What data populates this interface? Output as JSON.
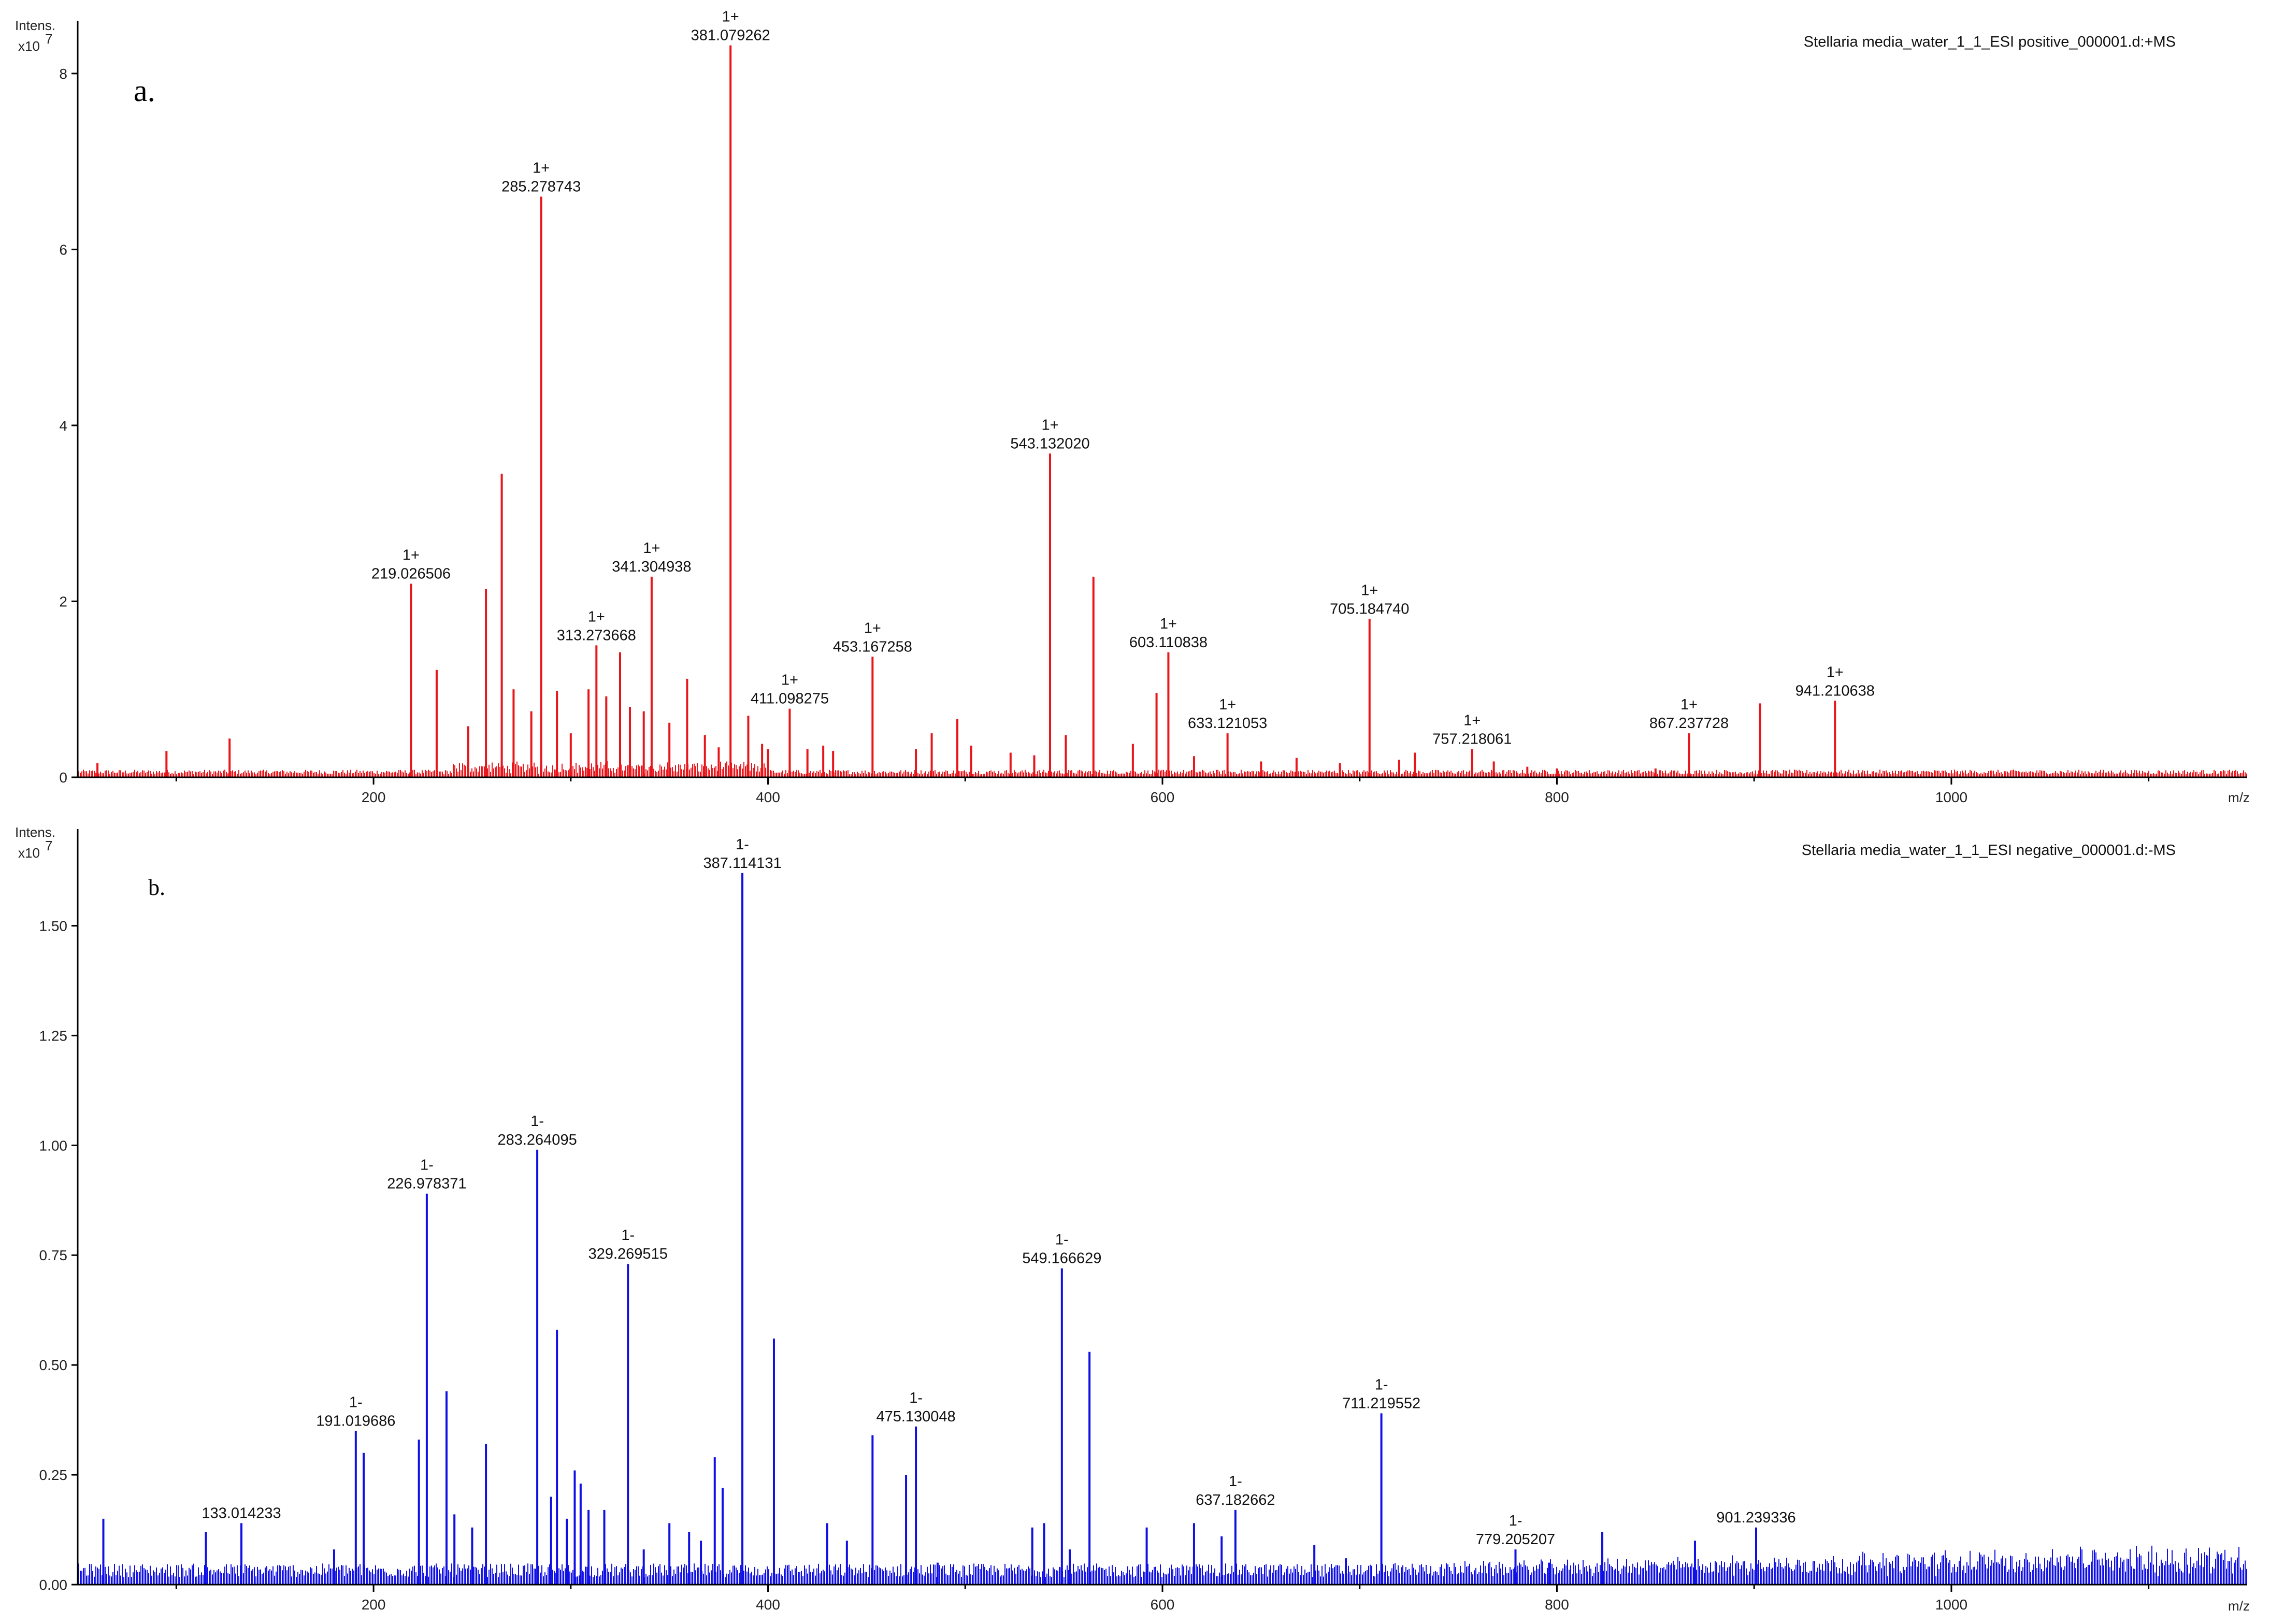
{
  "chart_data": [
    {
      "type": "bar",
      "panel": "a.",
      "title": "Stellaria media_water_1_1_ESI positive_000001.d:+MS",
      "ylabel_line1": "Intens.",
      "ylabel_line2": "x10",
      "ylabel_exp": "7",
      "xlabel": "m/z",
      "xlim": [
        50,
        1150
      ],
      "ylim": [
        0,
        8.6
      ],
      "xticks": [
        200,
        400,
        600,
        800,
        1000
      ],
      "xtick_labels": [
        "200",
        "400",
        "600",
        "800",
        "1000"
      ],
      "yticks": [
        0,
        2,
        4,
        6,
        8
      ],
      "ytick_labels": [
        "0",
        "2",
        "4",
        "6",
        "8"
      ],
      "color": "#e8151b",
      "peaks_x": [
        60,
        95,
        127,
        219,
        232,
        248,
        257,
        265,
        271,
        280,
        285,
        293,
        300,
        309,
        313,
        318,
        325,
        330,
        337,
        341,
        350,
        359,
        368,
        375,
        381,
        390,
        397,
        400,
        411,
        420,
        428,
        433,
        453,
        475,
        483,
        496,
        503,
        523,
        535,
        543,
        551,
        565,
        585,
        597,
        603,
        616,
        633,
        650,
        668,
        690,
        705,
        720,
        728,
        757,
        768,
        785,
        800,
        850,
        867,
        903,
        941
      ],
      "peaks_y": [
        0.16,
        0.3,
        0.44,
        2.2,
        1.22,
        0.58,
        2.14,
        3.45,
        1.0,
        0.75,
        6.6,
        0.98,
        0.5,
        1.0,
        1.5,
        0.92,
        1.42,
        0.8,
        0.75,
        2.28,
        0.62,
        1.12,
        0.48,
        0.34,
        8.32,
        0.7,
        0.38,
        0.32,
        0.78,
        0.32,
        0.36,
        0.3,
        1.37,
        0.32,
        0.5,
        0.66,
        0.36,
        0.28,
        0.25,
        3.68,
        0.48,
        2.28,
        0.38,
        0.96,
        1.42,
        0.24,
        0.5,
        0.18,
        0.22,
        0.16,
        1.8,
        0.2,
        0.28,
        0.32,
        0.18,
        0.12,
        0.1,
        0.1,
        0.5,
        0.84,
        0.87
      ],
      "annotations": [
        {
          "x": 219,
          "y": 2.2,
          "charge": "1+",
          "text": "219.026506"
        },
        {
          "x": 285,
          "y": 6.6,
          "charge": "1+",
          "text": "285.278743"
        },
        {
          "x": 313,
          "y": 1.5,
          "charge": "1+",
          "text": "313.273668"
        },
        {
          "x": 341,
          "y": 2.28,
          "charge": "1+",
          "text": "341.304938"
        },
        {
          "x": 381,
          "y": 8.32,
          "charge": "1+",
          "text": "381.079262"
        },
        {
          "x": 411,
          "y": 0.78,
          "charge": "1+",
          "text": "411.098275"
        },
        {
          "x": 453,
          "y": 1.37,
          "charge": "1+",
          "text": "453.167258"
        },
        {
          "x": 543,
          "y": 3.68,
          "charge": "1+",
          "text": "543.132020"
        },
        {
          "x": 603,
          "y": 1.42,
          "charge": "1+",
          "text": "603.110838"
        },
        {
          "x": 633,
          "y": 0.5,
          "charge": "1+",
          "text": "633.121053"
        },
        {
          "x": 705,
          "y": 1.8,
          "charge": "1+",
          "text": "705.184740"
        },
        {
          "x": 757,
          "y": 0.32,
          "charge": "1+",
          "text": "757.218061"
        },
        {
          "x": 867,
          "y": 0.5,
          "charge": "1+",
          "text": "867.237728"
        },
        {
          "x": 941,
          "y": 0.87,
          "charge": "1+",
          "text": "941.210638"
        }
      ]
    },
    {
      "type": "bar",
      "panel": "b.",
      "title": "Stellaria media_water_1_1_ESI negative_000001.d:-MS",
      "ylabel_line1": "Intens.",
      "ylabel_line2": "x10",
      "ylabel_exp": "7",
      "xlabel": "m/z",
      "xlim": [
        50,
        1150
      ],
      "ylim": [
        0,
        1.72
      ],
      "xticks": [
        200,
        400,
        600,
        800,
        1000
      ],
      "xtick_labels": [
        "200",
        "400",
        "600",
        "800",
        "1000"
      ],
      "yticks": [
        0,
        0.25,
        0.5,
        0.75,
        1.0,
        1.25,
        1.5
      ],
      "ytick_labels": [
        "0.00",
        "0.25",
        "0.50",
        "0.75",
        "1.00",
        "1.25",
        "1.50"
      ],
      "color": "#1010e6",
      "peaks_x": [
        63,
        115,
        133,
        180,
        191,
        195,
        223,
        227,
        237,
        241,
        250,
        257,
        283,
        290,
        293,
        298,
        302,
        305,
        309,
        317,
        329,
        337,
        350,
        360,
        366,
        373,
        377,
        387,
        403,
        430,
        440,
        453,
        470,
        475,
        486,
        534,
        540,
        549,
        553,
        563,
        592,
        616,
        630,
        637,
        677,
        693,
        711,
        779,
        796,
        823,
        870,
        901
      ],
      "peaks_y": [
        0.15,
        0.12,
        0.14,
        0.08,
        0.35,
        0.3,
        0.33,
        0.89,
        0.44,
        0.16,
        0.13,
        0.32,
        0.99,
        0.2,
        0.58,
        0.15,
        0.26,
        0.23,
        0.17,
        0.17,
        0.73,
        0.08,
        0.14,
        0.12,
        0.1,
        0.29,
        0.22,
        1.62,
        0.56,
        0.14,
        0.1,
        0.34,
        0.25,
        0.36,
        0.05,
        0.13,
        0.14,
        0.72,
        0.08,
        0.53,
        0.13,
        0.14,
        0.11,
        0.17,
        0.09,
        0.06,
        0.39,
        0.08,
        0.05,
        0.12,
        0.1,
        0.13
      ],
      "annotations": [
        {
          "x": 133,
          "y": 0.14,
          "charge": "",
          "text": "133.014233"
        },
        {
          "x": 191,
          "y": 0.35,
          "charge": "1-",
          "text": "191.019686"
        },
        {
          "x": 227,
          "y": 0.89,
          "charge": "1-",
          "text": "226.978371"
        },
        {
          "x": 283,
          "y": 0.99,
          "charge": "1-",
          "text": "283.264095"
        },
        {
          "x": 329,
          "y": 0.73,
          "charge": "1-",
          "text": "329.269515"
        },
        {
          "x": 387,
          "y": 1.62,
          "charge": "1-",
          "text": "387.114131"
        },
        {
          "x": 475,
          "y": 0.36,
          "charge": "1-",
          "text": "475.130048"
        },
        {
          "x": 549,
          "y": 0.72,
          "charge": "1-",
          "text": "549.166629"
        },
        {
          "x": 637,
          "y": 0.17,
          "charge": "1-",
          "text": "637.182662"
        },
        {
          "x": 711,
          "y": 0.39,
          "charge": "1-",
          "text": "711.219552"
        },
        {
          "x": 779,
          "y": 0.08,
          "charge": "1-",
          "text": "779.205207"
        },
        {
          "x": 901,
          "y": 0.13,
          "charge": "",
          "text": "901.239336"
        }
      ]
    }
  ]
}
